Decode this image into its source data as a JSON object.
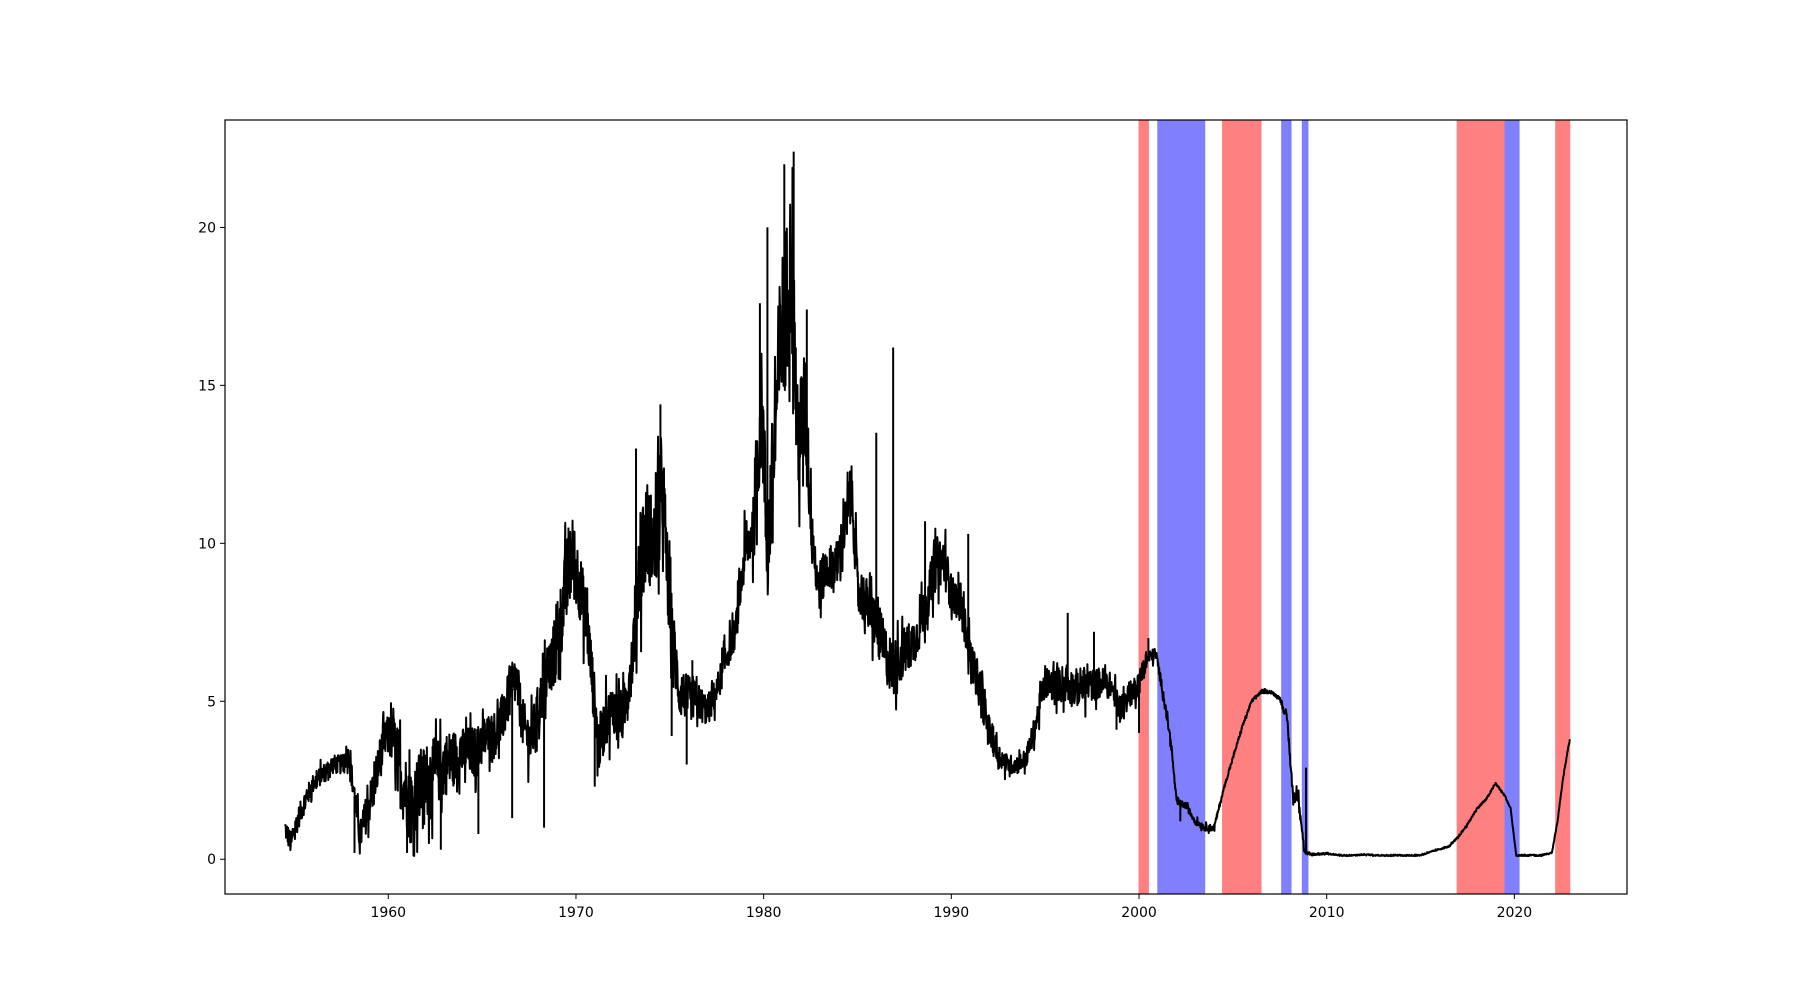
{
  "chart_data": {
    "type": "line",
    "title": "",
    "xlabel": "",
    "ylabel": "",
    "xlim": [
      1951.3,
      2026.0
    ],
    "ylim": [
      -1.1,
      23.4
    ],
    "x_ticks": [
      1960,
      1970,
      1980,
      1990,
      2000,
      2010,
      2020
    ],
    "y_ticks": [
      0,
      5,
      10,
      15,
      20
    ],
    "grid": false,
    "legend": "none",
    "line_color": "#000000",
    "shaded_regions": [
      {
        "start": 2000.0,
        "end": 2000.5,
        "color": "#ff8080",
        "phase": "red"
      },
      {
        "start": 2001.0,
        "end": 2003.5,
        "color": "#8080ff",
        "phase": "blue"
      },
      {
        "start": 2004.45,
        "end": 2006.5,
        "color": "#ff8080",
        "phase": "red"
      },
      {
        "start": 2007.6,
        "end": 2008.1,
        "color": "#8080ff",
        "phase": "blue"
      },
      {
        "start": 2008.7,
        "end": 2009.0,
        "color": "#8080ff",
        "phase": "blue"
      },
      {
        "start": 2016.95,
        "end": 2019.5,
        "color": "#ff8080",
        "phase": "red"
      },
      {
        "start": 2019.5,
        "end": 2020.25,
        "color": "#8080ff",
        "phase": "blue"
      },
      {
        "start": 2022.2,
        "end": 2022.95,
        "color": "#ff8080",
        "phase": "red"
      }
    ],
    "series": [
      {
        "x": [
          1954.5,
          1954.8,
          1955.2,
          1955.6,
          1956.0,
          1956.5,
          1957.0,
          1957.5,
          1957.9,
          1958.2,
          1958.5,
          1958.8,
          1959.2,
          1959.6,
          1959.9,
          1960.3,
          1960.7,
          1961.2,
          1961.7,
          1962.2,
          1962.7,
          1963.2,
          1963.7,
          1964.2,
          1964.7,
          1965.2,
          1965.7,
          1966.0,
          1966.4,
          1966.8,
          1967.2,
          1967.6,
          1968.0,
          1968.5,
          1969.0,
          1969.5,
          1969.8,
          1970.2,
          1970.6,
          1970.9,
          1971.2,
          1971.6,
          1972.0,
          1972.5,
          1973.0,
          1973.4,
          1973.8,
          1974.2,
          1974.6,
          1975.0,
          1975.5,
          1976.0,
          1976.5,
          1977.0,
          1977.5,
          1978.0,
          1978.5,
          1979.0,
          1979.5,
          1979.9,
          1980.2,
          1980.5,
          1980.9,
          1981.2,
          1981.5,
          1981.8,
          1982.2,
          1982.6,
          1982.9,
          1983.4,
          1983.9,
          1984.3,
          1984.7,
          1985.0,
          1985.5,
          1986.0,
          1986.5,
          1986.9,
          1987.3,
          1987.7,
          1988.2,
          1988.7,
          1989.2,
          1989.6,
          1990.0,
          1990.5,
          1991.0,
          1991.5,
          1992.0,
          1992.5,
          1993.0,
          1993.5,
          1994.0,
          1994.5,
          1995.0,
          1995.5,
          1996.0,
          1996.5,
          1997.0,
          1997.5,
          1998.0,
          1998.5,
          1999.0,
          1999.5,
          2000.0,
          2000.5,
          2000.9,
          2001.3,
          2001.7,
          2002.0,
          2002.5,
          2003.0,
          2003.5,
          2004.0,
          2004.5,
          2005.0,
          2005.5,
          2006.0,
          2006.5,
          2007.0,
          2007.5,
          2007.9,
          2008.2,
          2008.5,
          2008.8,
          2009.0,
          2010.0,
          2011.0,
          2012.0,
          2013.0,
          2014.0,
          2015.0,
          2015.9,
          2016.5,
          2017.0,
          2017.5,
          2018.0,
          2018.5,
          2019.0,
          2019.5,
          2019.8,
          2020.1,
          2020.3,
          2021.0,
          2022.0,
          2022.3,
          2022.6,
          2022.95
        ],
        "y": [
          1.0,
          0.5,
          1.3,
          1.9,
          2.4,
          2.7,
          3.0,
          3.0,
          3.3,
          2.0,
          0.7,
          1.4,
          2.2,
          3.3,
          3.9,
          3.8,
          2.6,
          1.6,
          2.3,
          2.6,
          2.8,
          3.1,
          3.3,
          3.4,
          3.4,
          3.9,
          4.0,
          4.3,
          5.1,
          5.7,
          4.2,
          3.7,
          4.8,
          5.9,
          6.8,
          8.8,
          9.6,
          8.7,
          7.4,
          5.5,
          3.6,
          4.4,
          4.8,
          4.5,
          6.4,
          9.6,
          10.4,
          9.8,
          11.8,
          7.8,
          5.3,
          5.1,
          5.0,
          4.7,
          5.3,
          6.4,
          7.2,
          9.7,
          10.6,
          14.5,
          9.7,
          12.4,
          16.4,
          17.6,
          19.2,
          13.1,
          14.3,
          10.3,
          8.6,
          9.2,
          9.4,
          10.4,
          11.6,
          8.6,
          8.1,
          7.4,
          6.5,
          6.0,
          6.4,
          6.7,
          7.1,
          8.2,
          9.4,
          9.5,
          8.4,
          8.1,
          6.5,
          5.4,
          4.1,
          3.3,
          3.0,
          3.0,
          3.2,
          4.3,
          5.6,
          5.5,
          5.6,
          5.4,
          5.5,
          5.5,
          5.6,
          5.5,
          4.8,
          5.2,
          5.6,
          6.4,
          6.5,
          5.2,
          3.7,
          1.8,
          1.7,
          1.2,
          1.0,
          1.0,
          2.2,
          3.2,
          4.2,
          5.0,
          5.3,
          5.3,
          5.1,
          4.4,
          2.0,
          2.0,
          0.3,
          0.15,
          0.18,
          0.1,
          0.15,
          0.12,
          0.1,
          0.13,
          0.3,
          0.4,
          0.7,
          1.1,
          1.6,
          1.9,
          2.4,
          2.0,
          1.6,
          0.1,
          0.1,
          0.08,
          0.2,
          1.2,
          2.6,
          3.8
        ],
        "noise": [
          0.35,
          0.35,
          0.35,
          0.35,
          0.3,
          0.3,
          0.3,
          0.3,
          0.3,
          0.5,
          0.5,
          0.6,
          0.7,
          0.7,
          0.6,
          0.8,
          1.2,
          1.2,
          1.2,
          1.2,
          1.0,
          1.0,
          0.8,
          0.8,
          0.8,
          0.7,
          0.7,
          0.8,
          0.8,
          0.8,
          0.8,
          0.8,
          0.8,
          0.9,
          1.2,
          1.3,
          1.3,
          1.1,
          1.0,
          0.9,
          0.9,
          0.8,
          0.8,
          0.8,
          1.0,
          1.8,
          1.6,
          1.5,
          1.6,
          1.2,
          0.8,
          0.7,
          0.6,
          0.5,
          0.5,
          0.5,
          0.5,
          0.8,
          1.0,
          1.8,
          1.8,
          2.0,
          2.6,
          2.6,
          2.4,
          2.0,
          1.8,
          1.2,
          0.8,
          0.7,
          0.7,
          0.8,
          0.9,
          0.8,
          0.8,
          0.9,
          0.9,
          0.9,
          0.8,
          0.8,
          0.7,
          0.7,
          0.8,
          0.8,
          0.6,
          0.6,
          0.6,
          0.6,
          0.5,
          0.4,
          0.3,
          0.3,
          0.3,
          0.4,
          0.5,
          0.5,
          0.6,
          0.6,
          0.6,
          0.5,
          0.5,
          0.4,
          0.4,
          0.4,
          0.4,
          0.2,
          0.2,
          0.15,
          0.15,
          0.1,
          0.1,
          0.1,
          0.1,
          0.1,
          0.05,
          0.05,
          0.05,
          0.05,
          0.05,
          0.05,
          0.05,
          0.15,
          0.2,
          0.2,
          0.1,
          0.05,
          0.02,
          0.02,
          0.02,
          0.02,
          0.02,
          0.02,
          0.02,
          0.02,
          0.03,
          0.03,
          0.03,
          0.03,
          0.03,
          0.03,
          0.03,
          0.02,
          0.02,
          0.02,
          0.02,
          0.03,
          0.03,
          0.03
        ]
      }
    ],
    "spikes": [
      {
        "x": 1979.8,
        "y": 17.6
      },
      {
        "x": 1980.2,
        "y": 20.0
      },
      {
        "x": 1980.1,
        "y": 10.2
      },
      {
        "x": 1981.1,
        "y": 22.0
      },
      {
        "x": 1981.6,
        "y": 22.4
      },
      {
        "x": 1981.4,
        "y": 20.2
      },
      {
        "x": 1982.3,
        "y": 17.4
      },
      {
        "x": 1982.1,
        "y": 11.8
      },
      {
        "x": 1986.0,
        "y": 13.5
      },
      {
        "x": 1986.9,
        "y": 16.2
      },
      {
        "x": 1984.6,
        "y": 12.3
      },
      {
        "x": 1973.2,
        "y": 13.0
      },
      {
        "x": 1974.5,
        "y": 14.4
      },
      {
        "x": 1975.1,
        "y": 3.9
      },
      {
        "x": 1975.9,
        "y": 3.0
      },
      {
        "x": 1969.6,
        "y": 10.5
      },
      {
        "x": 1970.2,
        "y": 9.1
      },
      {
        "x": 1971.0,
        "y": 2.3
      },
      {
        "x": 1988.6,
        "y": 10.7
      },
      {
        "x": 1990.9,
        "y": 10.3
      },
      {
        "x": 1996.2,
        "y": 7.8
      },
      {
        "x": 1997.6,
        "y": 7.2
      },
      {
        "x": 1998.8,
        "y": 4.1
      },
      {
        "x": 2000.0,
        "y": 4.0
      },
      {
        "x": 2000.5,
        "y": 7.0
      },
      {
        "x": 1958.2,
        "y": 0.2
      },
      {
        "x": 1961.0,
        "y": 0.2
      },
      {
        "x": 1962.8,
        "y": 0.3
      },
      {
        "x": 1964.8,
        "y": 0.8
      },
      {
        "x": 1966.6,
        "y": 1.3
      },
      {
        "x": 1968.3,
        "y": 1.0
      },
      {
        "x": 1976.2,
        "y": 6.3
      },
      {
        "x": 2002.2,
        "y": 1.2
      },
      {
        "x": 2008.9,
        "y": 2.9
      }
    ]
  }
}
